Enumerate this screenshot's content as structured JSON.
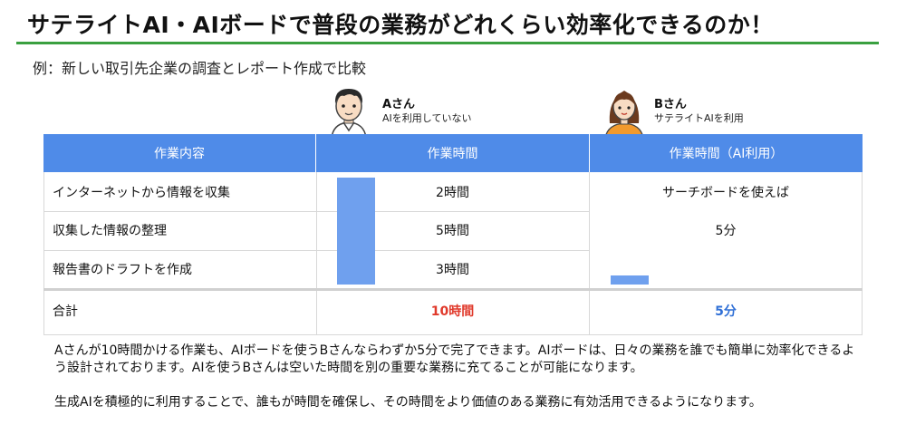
{
  "page": {
    "title": "サテライトAI・AIボードで普段の業務がどれくらい効率化できるのか！",
    "subtitle": "例：新しい取引先企業の調査とレポート作成で比較",
    "accent_color": "#3aa040",
    "header_color": "#4f8be8"
  },
  "persons": {
    "a": {
      "name": "Aさん",
      "desc": "AIを利用していない",
      "icon": "man-avatar-icon"
    },
    "b": {
      "name": "Bさん",
      "desc": "サテライトAIを利用",
      "icon": "woman-avatar-icon"
    }
  },
  "table": {
    "headers": [
      "作業内容",
      "作業時間",
      "作業時間（AI利用）"
    ],
    "rows": [
      {
        "task": "インターネットから情報を収集",
        "time": "2時間"
      },
      {
        "task": "収集した情報の整理",
        "time": "5時間"
      },
      {
        "task": "報告書のドラフトを作成",
        "time": "3時間"
      }
    ],
    "ai_note": "サーチボードを使えば",
    "ai_time": "5分",
    "total_label": "合計",
    "total_time": "10時間",
    "total_ai_time": "5分",
    "total_time_color": "#e0392b",
    "total_ai_color": "#2f6fd6"
  },
  "description": {
    "para1": "Aさんが10時間かける作業も、AIボードを使うBさんならわずか5分で完了できます。AIボードは、日々の業務を誰でも簡単に効率化できるよう設計されております。AIを使うBさんは空いた時間を別の重要な業務に充てることが可能になります。",
    "para2": "生成AIを積極的に利用することで、誰もが時間を確保し、その時間をより価値のある業務に有効活用できるようになります。"
  }
}
